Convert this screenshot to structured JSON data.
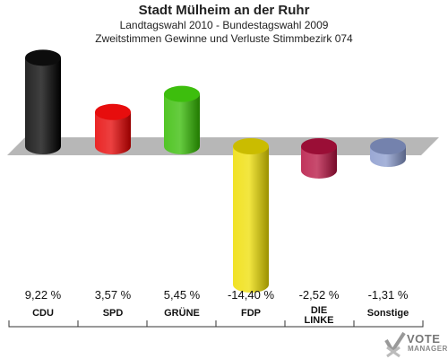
{
  "title": "Stadt Mülheim an der Ruhr",
  "subtitle1": "Landtagswahl 2010 - Bundestagswahl 2009",
  "subtitle2": "Zweitstimmen Gewinne und Verluste Stimmbezirk 074",
  "logo": {
    "line1": "VOTE",
    "line2": "MANAGER",
    "icon": "checkmark-x-icon"
  },
  "chart_data": {
    "type": "bar",
    "categories": [
      "CDU",
      "SPD",
      "GRÜNE",
      "FDP",
      "DIE LINKE",
      "Sonstige"
    ],
    "values": [
      9.22,
      3.57,
      5.45,
      -14.4,
      -2.52,
      -1.31
    ],
    "value_labels": [
      "9,22 %",
      "3,57 %",
      "5,45 %",
      "-14,40 %",
      "-2,52 %",
      "-1,31 %"
    ],
    "colors": [
      "#000000",
      "#e60000",
      "#33bb00",
      "#eedd00",
      "#b5103f",
      "#8899cc"
    ],
    "ylim": [
      -15,
      10
    ],
    "baseline_band": true,
    "grid": false,
    "legend": "none"
  }
}
